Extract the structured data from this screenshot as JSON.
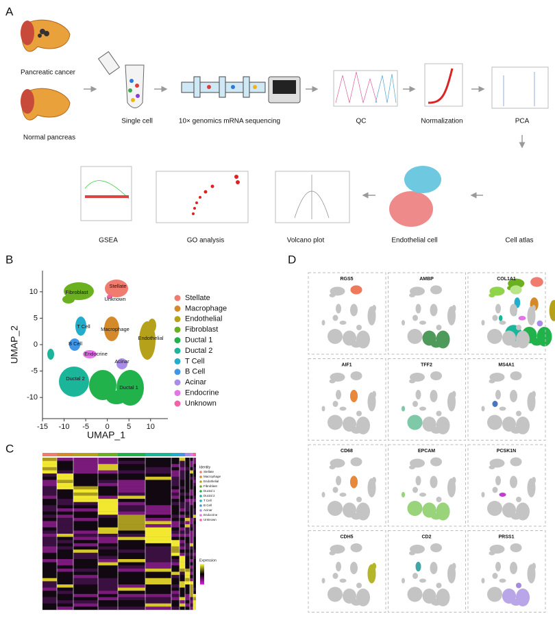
{
  "panel_labels": [
    "A",
    "B",
    "C",
    "D"
  ],
  "workflow": {
    "row1": [
      "Pancreatic cancer",
      "Normal pancreas",
      "Single cell",
      "10× genomics mRNA sequencing",
      "QC",
      "Normalization",
      "PCA"
    ],
    "row2": [
      "GSEA",
      "GO analysis",
      "Volcano plot",
      "Endothelial cell",
      "Cell atlas"
    ]
  },
  "umap": {
    "xlabel": "UMAP_1",
    "ylabel": "UMAP_2",
    "xlim": [
      -15,
      14
    ],
    "ylim": [
      -14,
      14
    ],
    "xticks": [
      -15,
      -10,
      -5,
      0,
      5,
      10
    ],
    "yticks": [
      -10,
      -5,
      0,
      5,
      10
    ],
    "legend": [
      {
        "name": "Stellate",
        "color": "#f07b6f"
      },
      {
        "name": "Macrophage",
        "color": "#d4892a"
      },
      {
        "name": "Endothelial",
        "color": "#b5a21a"
      },
      {
        "name": "Fibroblast",
        "color": "#6bb01f"
      },
      {
        "name": "Ductal 1",
        "color": "#22b24c"
      },
      {
        "name": "Ductal 2",
        "color": "#1bb59a"
      },
      {
        "name": "T Cell",
        "color": "#22aeca"
      },
      {
        "name": "B Cell",
        "color": "#3f96e6"
      },
      {
        "name": "Acinar",
        "color": "#a98be8"
      },
      {
        "name": "Endocrine",
        "color": "#e276e8"
      },
      {
        "name": "Unknown",
        "color": "#f462a6"
      }
    ],
    "cluster_labels": [
      "Stellate",
      "Unknown",
      "Fibroblast",
      "Macrophage",
      "Endothelial",
      "T Cell",
      "B Cell",
      "Endocrine",
      "Acinar",
      "Ductal 2",
      "Ductal 1"
    ]
  },
  "heatmap": {
    "identity_title": "Identity",
    "expression_title": "Expression"
  },
  "feature_plots": [
    "RGS5",
    "AMBP",
    "COL1A1",
    "AIF1",
    "TFF2",
    "MS4A1",
    "CD68",
    "EPCAM",
    "PCSK1N",
    "CDH5",
    "CD2",
    "PRSS1"
  ]
}
